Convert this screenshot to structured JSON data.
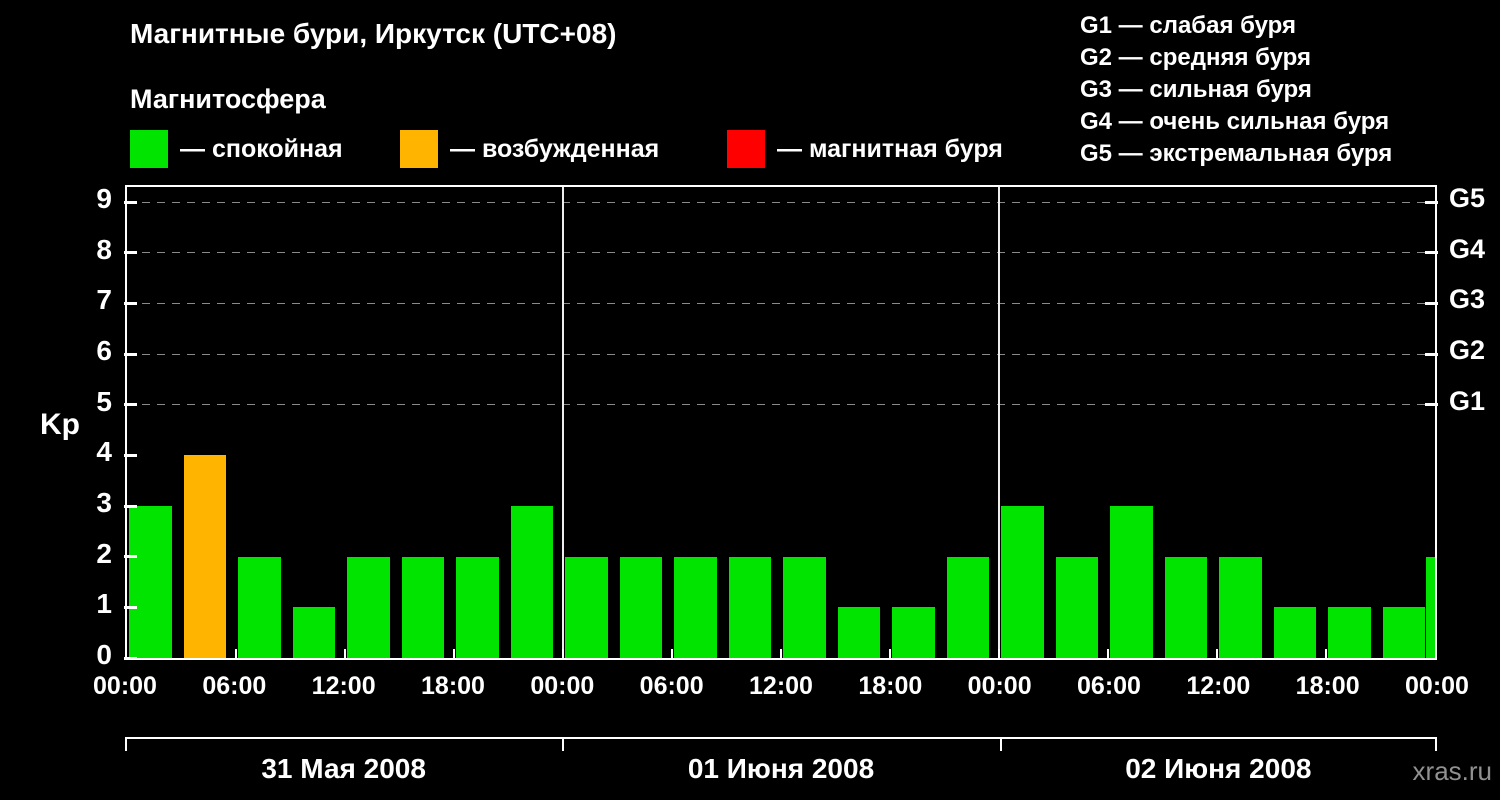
{
  "title": "Магнитные бури, Иркутск (UTC+08)",
  "subtitle": "Магнитосфера",
  "legend": {
    "quiet": {
      "label": "— спокойная",
      "color": "#00e400"
    },
    "excited": {
      "label": "— возбужденная",
      "color": "#ffb400"
    },
    "storm": {
      "label": "— магнитная буря",
      "color": "#ff0000"
    }
  },
  "g_legend": [
    {
      "label": "G1 — слабая буря"
    },
    {
      "label": "G2 — средняя буря"
    },
    {
      "label": "G3 — сильная буря"
    },
    {
      "label": "G4 — очень сильная буря"
    },
    {
      "label": "G5 — экстремальная буря"
    }
  ],
  "watermark": "xras.ru",
  "chart_data": {
    "type": "bar",
    "title": "Магнитные бури, Иркутск (UTC+08)",
    "ylabel": "Kp",
    "ylim": [
      0,
      9.3
    ],
    "yticks": [
      0,
      1,
      2,
      3,
      4,
      5,
      6,
      7,
      8,
      9
    ],
    "grid_values": [
      5,
      6,
      7,
      8,
      9
    ],
    "right_axis": [
      {
        "value": 5,
        "label": "G1"
      },
      {
        "value": 6,
        "label": "G2"
      },
      {
        "value": 7,
        "label": "G3"
      },
      {
        "value": 8,
        "label": "G4"
      },
      {
        "value": 9,
        "label": "G5"
      }
    ],
    "bar_interval_hours": 3,
    "x_tick_labels_full": [
      "00:00",
      "06:00",
      "12:00",
      "18:00",
      "00:00",
      "06:00",
      "12:00",
      "18:00",
      "00:00",
      "06:00",
      "12:00",
      "18:00",
      "00:00"
    ],
    "days": [
      {
        "date": "31 Мая 2008",
        "values": [
          3,
          4,
          2,
          1,
          2,
          2,
          2,
          3
        ]
      },
      {
        "date": "01 Июня 2008",
        "values": [
          2,
          2,
          2,
          2,
          2,
          1,
          1,
          2
        ]
      },
      {
        "date": "02 Июня 2008",
        "values": [
          3,
          2,
          3,
          2,
          2,
          1,
          1,
          1
        ]
      }
    ],
    "partial_next_value": 2,
    "color_rules": {
      "quiet_max": 3,
      "excited_max": 4
    },
    "colors": {
      "quiet": "#00e400",
      "excited": "#ffb400",
      "storm": "#ff0000"
    },
    "grid_on": true,
    "legend_position": "top"
  }
}
